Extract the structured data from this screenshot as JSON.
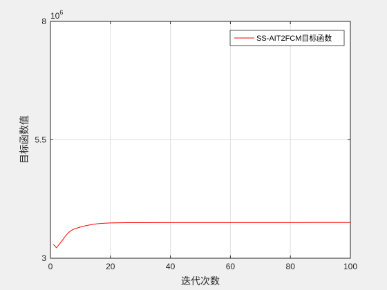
{
  "chart_data": {
    "type": "line",
    "title": "",
    "xlabel": "迭代次数",
    "ylabel": "目标函数值",
    "xlim": [
      0,
      100
    ],
    "ylim": [
      3,
      8
    ],
    "x_ticks": [
      0,
      20,
      40,
      60,
      80,
      100
    ],
    "x_tick_labels": [
      "0",
      "20",
      "40",
      "60",
      "80",
      "100"
    ],
    "y_ticks": [
      3,
      5.5,
      8
    ],
    "y_tick_labels": [
      "3",
      "5.5",
      "8"
    ],
    "y_exponent": "10",
    "y_exponent_power": "6",
    "grid": true,
    "legend_position": "top-right",
    "series": [
      {
        "name": "SS-AIT2FCM目标函数",
        "color": "#ff0000",
        "x": [
          1,
          2,
          3,
          4,
          5,
          6,
          7,
          8,
          10,
          12,
          14,
          16,
          18,
          20,
          25,
          30,
          40,
          50,
          60,
          70,
          80,
          90,
          100
        ],
        "y": [
          3.29,
          3.22,
          3.3,
          3.38,
          3.47,
          3.54,
          3.59,
          3.62,
          3.66,
          3.69,
          3.715,
          3.73,
          3.74,
          3.745,
          3.75,
          3.75,
          3.752,
          3.752,
          3.753,
          3.753,
          3.753,
          3.754,
          3.754
        ]
      }
    ]
  },
  "colors": {
    "background": "#f0f0f0",
    "plot_area": "#ffffff",
    "axis": "#262626",
    "grid": "#dfdfdf"
  }
}
